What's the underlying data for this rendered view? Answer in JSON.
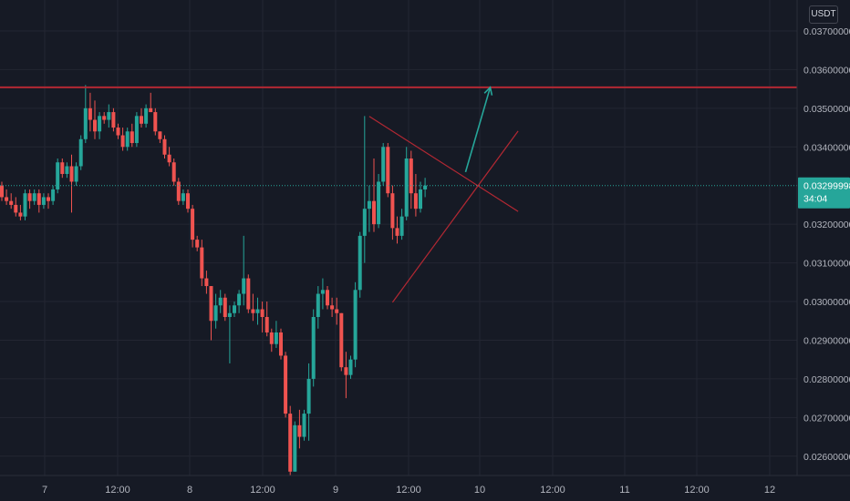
{
  "chart_data": {
    "type": "candlestick",
    "currency": "USDT",
    "x_tick_labels": [
      "7",
      "12:00",
      "8",
      "12:00",
      "9",
      "12:00",
      "10",
      "12:00",
      "11",
      "12:00",
      "12"
    ],
    "y_tick_labels": [
      "0.03700000",
      "0.03600000",
      "0.03500000",
      "0.03400000",
      "0.03200000",
      "0.03100000",
      "0.03000000",
      "0.02900000",
      "0.02800000",
      "0.02700000",
      "0.02600000"
    ],
    "ylim": [
      0.0255,
      0.0378
    ],
    "current_price": {
      "value": 0.03299998,
      "label": "0.03299998",
      "countdown": "34:04",
      "color": "#26a69a"
    },
    "colors": {
      "up": "#26a69a",
      "down": "#ef5350",
      "resistance": "#b22833",
      "triangle": "#b22833",
      "arrow": "#26a69a",
      "grid": "#232632",
      "background": "#161a25"
    },
    "candles": [
      [
        0.033,
        0.0331,
        0.0326,
        0.0327
      ],
      [
        0.0327,
        0.0329,
        0.0325,
        0.0326
      ],
      [
        0.0326,
        0.0328,
        0.0324,
        0.0325
      ],
      [
        0.0325,
        0.0327,
        0.0322,
        0.0323
      ],
      [
        0.0323,
        0.0325,
        0.0321,
        0.0322
      ],
      [
        0.0322,
        0.0329,
        0.0321,
        0.0328
      ],
      [
        0.0328,
        0.0329,
        0.0324,
        0.0326
      ],
      [
        0.0326,
        0.0329,
        0.0325,
        0.0328
      ],
      [
        0.0328,
        0.0329,
        0.0323,
        0.0325
      ],
      [
        0.0325,
        0.0328,
        0.0324,
        0.0327
      ],
      [
        0.0327,
        0.0328,
        0.0324,
        0.0326
      ],
      [
        0.0326,
        0.033,
        0.0325,
        0.0329
      ],
      [
        0.0329,
        0.0337,
        0.0328,
        0.0336
      ],
      [
        0.0336,
        0.0337,
        0.0332,
        0.0333
      ],
      [
        0.0333,
        0.0336,
        0.0332,
        0.0335
      ],
      [
        0.0335,
        0.0338,
        0.0323,
        0.0331
      ],
      [
        0.0331,
        0.0336,
        0.033,
        0.0335
      ],
      [
        0.0335,
        0.0343,
        0.0334,
        0.0342
      ],
      [
        0.0342,
        0.0356,
        0.0341,
        0.035
      ],
      [
        0.035,
        0.0354,
        0.0344,
        0.0347
      ],
      [
        0.0347,
        0.0352,
        0.0342,
        0.0344
      ],
      [
        0.0344,
        0.0349,
        0.0342,
        0.0348
      ],
      [
        0.0348,
        0.0349,
        0.0346,
        0.0347
      ],
      [
        0.0347,
        0.0351,
        0.0345,
        0.0349
      ],
      [
        0.0349,
        0.035,
        0.0344,
        0.0345
      ],
      [
        0.0345,
        0.0346,
        0.0342,
        0.0343
      ],
      [
        0.0343,
        0.0345,
        0.0339,
        0.034
      ],
      [
        0.034,
        0.0345,
        0.0339,
        0.0344
      ],
      [
        0.0344,
        0.0346,
        0.034,
        0.0341
      ],
      [
        0.0341,
        0.0349,
        0.034,
        0.0348
      ],
      [
        0.0348,
        0.035,
        0.0345,
        0.0346
      ],
      [
        0.0346,
        0.0351,
        0.0345,
        0.035
      ],
      [
        0.035,
        0.0354,
        0.0349,
        0.0349
      ],
      [
        0.0349,
        0.035,
        0.0343,
        0.0344
      ],
      [
        0.0344,
        0.0344,
        0.0341,
        0.0342
      ],
      [
        0.0342,
        0.0343,
        0.0337,
        0.0338
      ],
      [
        0.0338,
        0.034,
        0.0335,
        0.0336
      ],
      [
        0.0336,
        0.0337,
        0.033,
        0.0331
      ],
      [
        0.0331,
        0.0332,
        0.0325,
        0.0326
      ],
      [
        0.0326,
        0.0329,
        0.0325,
        0.0328
      ],
      [
        0.0328,
        0.0329,
        0.0323,
        0.0324
      ],
      [
        0.0324,
        0.0325,
        0.0314,
        0.0316
      ],
      [
        0.0316,
        0.0317,
        0.0313,
        0.0314
      ],
      [
        0.0314,
        0.0316,
        0.0304,
        0.0306
      ],
      [
        0.0306,
        0.0308,
        0.0302,
        0.0304
      ],
      [
        0.0304,
        0.0304,
        0.029,
        0.0295
      ],
      [
        0.0295,
        0.0302,
        0.0293,
        0.0299
      ],
      [
        0.0299,
        0.0303,
        0.0297,
        0.0301
      ],
      [
        0.0301,
        0.0302,
        0.0295,
        0.0296
      ],
      [
        0.0296,
        0.0299,
        0.0284,
        0.0297
      ],
      [
        0.0297,
        0.03,
        0.0296,
        0.0299
      ],
      [
        0.0299,
        0.0303,
        0.0297,
        0.0302
      ],
      [
        0.0302,
        0.0317,
        0.0299,
        0.0306
      ],
      [
        0.0306,
        0.0307,
        0.0297,
        0.0298
      ],
      [
        0.0298,
        0.0302,
        0.0295,
        0.0297
      ],
      [
        0.0297,
        0.0301,
        0.0294,
        0.0298
      ],
      [
        0.0298,
        0.03,
        0.0292,
        0.0296
      ],
      [
        0.0296,
        0.03,
        0.0291,
        0.0292
      ],
      [
        0.0292,
        0.0293,
        0.0287,
        0.0289
      ],
      [
        0.0289,
        0.0295,
        0.0288,
        0.0292
      ],
      [
        0.0292,
        0.0293,
        0.0285,
        0.0286
      ],
      [
        0.0286,
        0.0287,
        0.027,
        0.0271
      ],
      [
        0.0271,
        0.0273,
        0.0255,
        0.0256
      ],
      [
        0.0256,
        0.0269,
        0.0256,
        0.0268
      ],
      [
        0.0268,
        0.0272,
        0.0262,
        0.0265
      ],
      [
        0.0265,
        0.0272,
        0.0264,
        0.0271
      ],
      [
        0.0271,
        0.0284,
        0.0264,
        0.028
      ],
      [
        0.028,
        0.0298,
        0.0278,
        0.0296
      ],
      [
        0.0296,
        0.0304,
        0.0293,
        0.0302
      ],
      [
        0.0302,
        0.0306,
        0.0298,
        0.0303
      ],
      [
        0.0303,
        0.0304,
        0.0298,
        0.0299
      ],
      [
        0.0299,
        0.0301,
        0.0296,
        0.0298
      ],
      [
        0.0298,
        0.0301,
        0.0294,
        0.0297
      ],
      [
        0.0297,
        0.0297,
        0.0282,
        0.0283
      ],
      [
        0.0283,
        0.0287,
        0.0275,
        0.0281
      ],
      [
        0.0281,
        0.0286,
        0.028,
        0.0285
      ],
      [
        0.0285,
        0.0305,
        0.0283,
        0.0303
      ],
      [
        0.0303,
        0.0318,
        0.0301,
        0.0317
      ],
      [
        0.0317,
        0.0348,
        0.031,
        0.0324
      ],
      [
        0.0324,
        0.033,
        0.0318,
        0.0326
      ],
      [
        0.0326,
        0.0337,
        0.0318,
        0.032
      ],
      [
        0.032,
        0.0333,
        0.0319,
        0.0331
      ],
      [
        0.0331,
        0.0341,
        0.033,
        0.034
      ],
      [
        0.034,
        0.0341,
        0.0327,
        0.0328
      ],
      [
        0.0328,
        0.033,
        0.0316,
        0.0319
      ],
      [
        0.0319,
        0.0322,
        0.0315,
        0.0317
      ],
      [
        0.0317,
        0.0324,
        0.0316,
        0.0322
      ],
      [
        0.0322,
        0.034,
        0.0321,
        0.0337
      ],
      [
        0.0337,
        0.0339,
        0.0324,
        0.0328
      ],
      [
        0.0328,
        0.0333,
        0.0322,
        0.0324
      ],
      [
        0.0324,
        0.0331,
        0.0323,
        0.0329
      ],
      [
        0.0329,
        0.0332,
        0.0327,
        0.033
      ]
    ],
    "resistance_level": 0.03554,
    "triangle": {
      "upper": [
        {
          "index": 79,
          "price": 0.03479
        },
        {
          "index": 111,
          "price": 0.03233
        }
      ],
      "lower": [
        {
          "index": 84,
          "price": 0.02998
        },
        {
          "index": 111,
          "price": 0.03441
        }
      ]
    },
    "arrow": {
      "from": {
        "index": 99.7,
        "price": 0.03335
      },
      "to": {
        "index": 105,
        "price": 0.03554
      }
    }
  }
}
